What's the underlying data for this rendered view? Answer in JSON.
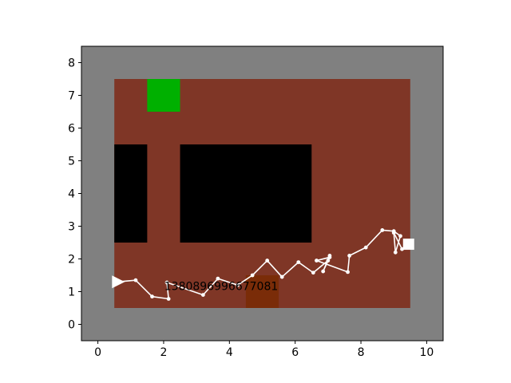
{
  "colors": {
    "wall": "#808080",
    "floor": "#7f3626",
    "obstacle": "#000000",
    "goal": "#00b000",
    "lava": "#7a2c08",
    "path": "#ffffff"
  },
  "chart_data": {
    "type": "scatter",
    "xlim": [
      -0.5,
      10.5
    ],
    "ylim": [
      -0.5,
      8.5
    ],
    "xticks": [
      "0",
      "2",
      "4",
      "6",
      "8",
      "10"
    ],
    "yticks": [
      "0",
      "1",
      "2",
      "3",
      "4",
      "5",
      "6",
      "7",
      "8"
    ],
    "xtick_values": [
      0,
      2,
      4,
      6,
      8,
      10
    ],
    "ytick_values": [
      0,
      1,
      2,
      3,
      4,
      5,
      6,
      7,
      8
    ],
    "grid": false,
    "cells": [
      {
        "name": "outer-wall",
        "kind": "wall",
        "x": [
          0,
          10
        ],
        "y": [
          0,
          8
        ]
      },
      {
        "name": "floor",
        "kind": "floor",
        "x": [
          0.5,
          9.5
        ],
        "y": [
          0.5,
          7.5
        ]
      },
      {
        "name": "obstacle-left",
        "kind": "obstacle",
        "x": [
          0.5,
          1.5
        ],
        "y": [
          2.5,
          5.5
        ]
      },
      {
        "name": "obstacle-center",
        "kind": "obstacle",
        "x": [
          2.5,
          6.5
        ],
        "y": [
          2.5,
          5.5
        ]
      },
      {
        "name": "goal-cell",
        "kind": "goal",
        "x": [
          1.5,
          2.5
        ],
        "y": [
          6.5,
          7.5
        ]
      },
      {
        "name": "lava-cell",
        "kind": "lava",
        "x": [
          4.5,
          5.5
        ],
        "y": [
          0.5,
          1.5
        ]
      }
    ],
    "trajectory": {
      "x": [
        0.6,
        1.15,
        1.65,
        2.15,
        2.1,
        3.2,
        3.65,
        4.25,
        4.7,
        5.15,
        5.6,
        6.1,
        6.55,
        7.0,
        7.05,
        6.85,
        7.05,
        6.65,
        7.6,
        7.65,
        8.15,
        8.65,
        9.0,
        9.2,
        9.05,
        9.0,
        9.25,
        9.45
      ],
      "y": [
        1.3,
        1.35,
        0.85,
        0.78,
        1.28,
        0.9,
        1.4,
        1.2,
        1.5,
        1.95,
        1.45,
        1.9,
        1.58,
        1.95,
        2.1,
        1.62,
        2.05,
        1.95,
        1.6,
        2.1,
        2.35,
        2.88,
        2.85,
        2.7,
        2.2,
        2.8,
        2.3,
        2.45
      ]
    },
    "start": {
      "x": 0.6,
      "y": 1.3,
      "marker": "triangle-right"
    },
    "end": {
      "x": 9.45,
      "y": 2.45,
      "marker": "square"
    },
    "annotation": {
      "text": "1380896996677081",
      "x": 3.75,
      "y": 1.05
    }
  }
}
